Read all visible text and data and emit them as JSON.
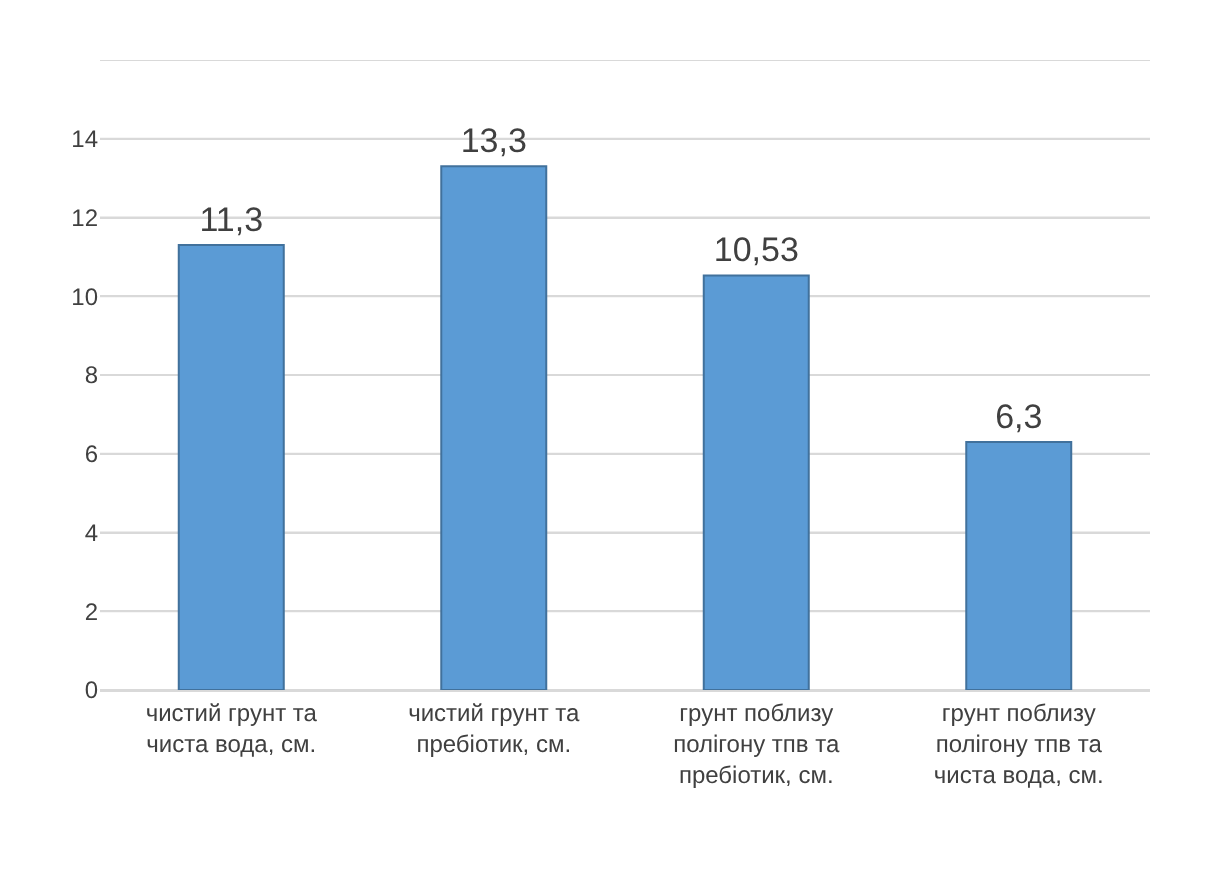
{
  "chart_data": {
    "type": "bar",
    "categories": [
      "чистий грунт та чиста вода, см.",
      "чистий грунт та пребіотик, см.",
      "грунт поблизу полігону тпв та пребіотик, см.",
      "грунт поблизу полігону тпв та чиста вода, см."
    ],
    "values": [
      11.3,
      13.3,
      10.53,
      6.3
    ],
    "value_labels": [
      "11,3",
      "13,3",
      "10,53",
      "6,3"
    ],
    "color": "#5b9bd5",
    "ylim": [
      0,
      16
    ],
    "yticks": [
      0,
      2,
      4,
      6,
      8,
      10,
      12,
      14,
      {
        "value": 16,
        "label": null
      }
    ],
    "grid": "y"
  }
}
